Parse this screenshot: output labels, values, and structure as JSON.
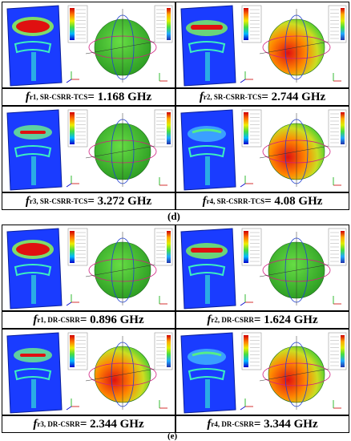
{
  "section_d": {
    "label": "(d)",
    "panels": [
      {
        "f": "f",
        "sub": "r1, SR-CSRR-TCS",
        "value": " = 1.168 GHz",
        "sphere_hot": false
      },
      {
        "f": "f",
        "sub": "r2, SR-CSRR-TCS",
        "value": " = 2.744 GHz",
        "sphere_hot": true
      },
      {
        "f": "f",
        "sub": "r3, SR-CSRR-TCS",
        "value": " = 3.272 GHz",
        "sphere_hot": false
      },
      {
        "f": "f",
        "sub": "r4, SR-CSRR-TCS",
        "value": " = 4.08 GHz",
        "sphere_hot": true
      }
    ]
  },
  "section_e": {
    "label": "(e)",
    "panels": [
      {
        "f": "f",
        "sub": "r1, DR-CSRR",
        "value": " = 0.896 GHz",
        "sphere_hot": false
      },
      {
        "f": "f",
        "sub": "r2, DR-CSRR",
        "value": " = 1.624 GHz",
        "sphere_hot": false
      },
      {
        "f": "f",
        "sub": "r3, DR-CSRR",
        "value": " = 2.344 GHz",
        "sphere_hot": true
      },
      {
        "f": "f",
        "sub": "r4, DR-CSRR",
        "value": " = 3.344 GHz",
        "sphere_hot": true
      }
    ]
  },
  "colors": {
    "plate_bg": "#1a3cff",
    "hot": "#e01010",
    "field_green": "#22d060",
    "sphere_green": "#44cc33"
  }
}
